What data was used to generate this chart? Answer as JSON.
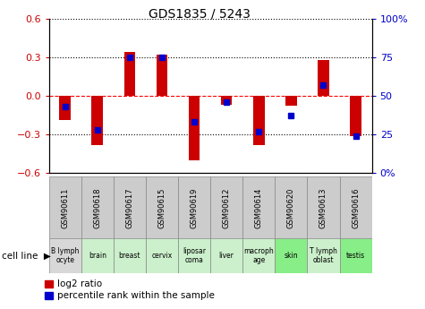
{
  "title": "GDS1835 / 5243",
  "gsm_labels": [
    "GSM90611",
    "GSM90618",
    "GSM90617",
    "GSM90615",
    "GSM90619",
    "GSM90612",
    "GSM90614",
    "GSM90620",
    "GSM90613",
    "GSM90616"
  ],
  "cell_labels": [
    "B lymph\nocyte",
    "brain",
    "breast",
    "cervix",
    "liposar\ncoma",
    "liver",
    "macroph\nage",
    "skin",
    "T lymph\noblast",
    "testis"
  ],
  "cell_bg_colors": [
    "#d8d8d8",
    "#ccf0cc",
    "#ccf0cc",
    "#ccf0cc",
    "#ccf0cc",
    "#ccf0cc",
    "#ccf0cc",
    "#88ee88",
    "#ccf0cc",
    "#88ee88"
  ],
  "gsm_bg_color": "#cccccc",
  "log2_values": [
    -0.19,
    -0.38,
    0.34,
    0.32,
    -0.5,
    -0.07,
    -0.38,
    -0.08,
    0.28,
    -0.31
  ],
  "percentile_values": [
    43,
    28,
    75,
    75,
    33,
    46,
    27,
    37,
    57,
    24
  ],
  "ylim": [
    -0.6,
    0.6
  ],
  "right_ylim": [
    0,
    100
  ],
  "bar_color": "#cc0000",
  "dot_color": "#0000cc",
  "bar_width": 0.35,
  "yticks_left": [
    -0.6,
    -0.3,
    0.0,
    0.3,
    0.6
  ],
  "yticks_right": [
    0,
    25,
    50,
    75,
    100
  ],
  "legend_red_label": "log2 ratio",
  "legend_blue_label": "percentile rank within the sample"
}
